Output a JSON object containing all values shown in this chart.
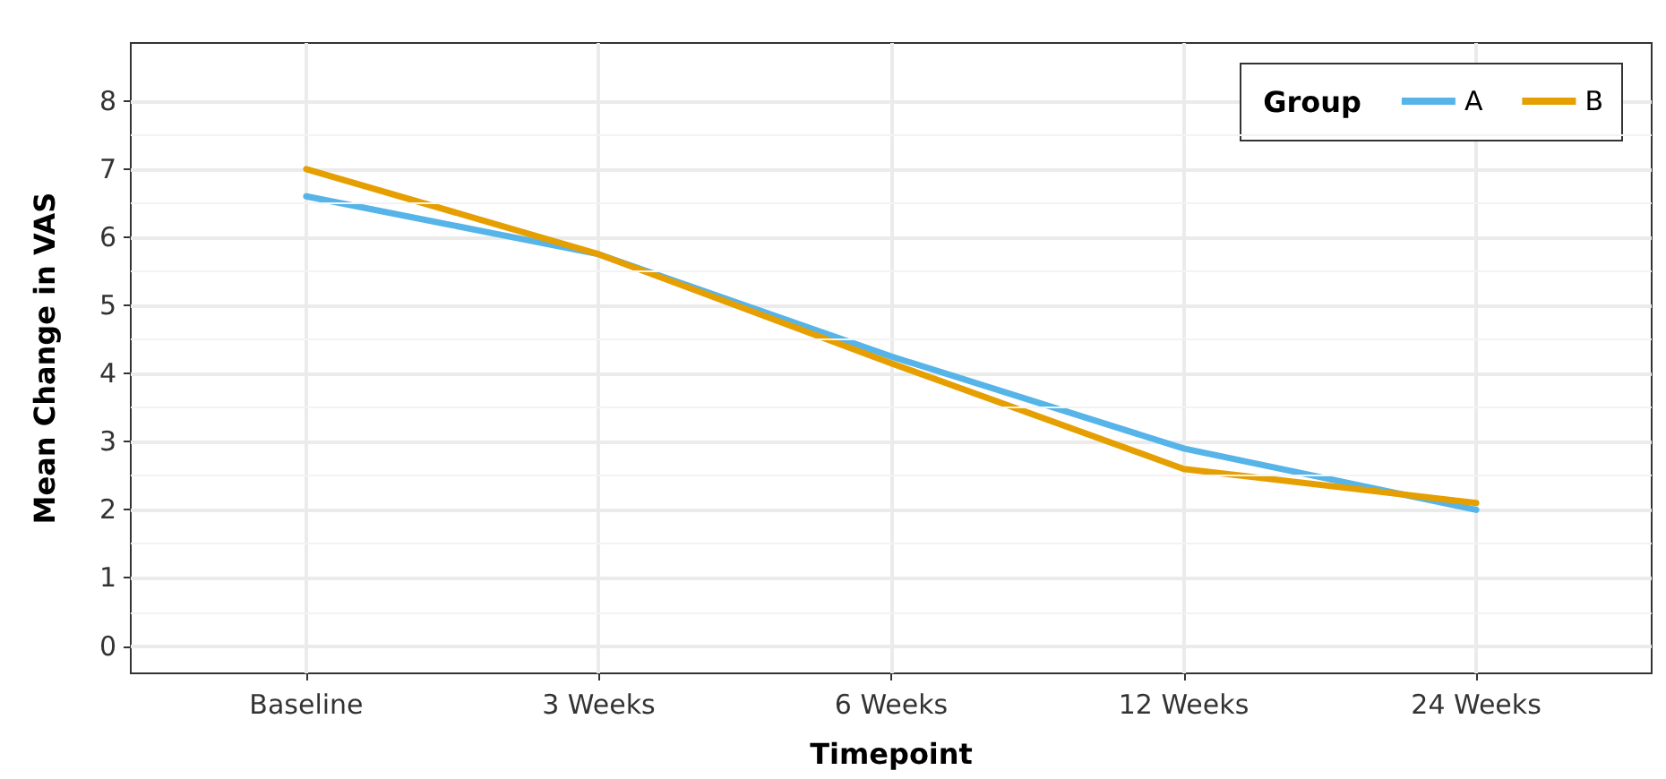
{
  "chart_data": {
    "type": "line",
    "xlabel": "Timepoint",
    "ylabel": "Mean Change in VAS",
    "legend_title": "Group",
    "categories": [
      "Baseline",
      "3 Weeks",
      "6 Weeks",
      "12 Weeks",
      "24 Weeks"
    ],
    "series": [
      {
        "name": "A",
        "color": "#56b4e9",
        "values": [
          6.6,
          5.75,
          4.25,
          2.9,
          2.0
        ]
      },
      {
        "name": "B",
        "color": "#e69f00",
        "values": [
          7.0,
          5.75,
          4.15,
          2.6,
          2.1
        ]
      }
    ],
    "ylim": [
      -0.4,
      8.85
    ],
    "yticks": [
      0,
      1,
      2,
      3,
      4,
      5,
      6,
      7,
      8
    ],
    "grid": true,
    "legend": "top right",
    "marker": "none",
    "line_style": "solid"
  }
}
